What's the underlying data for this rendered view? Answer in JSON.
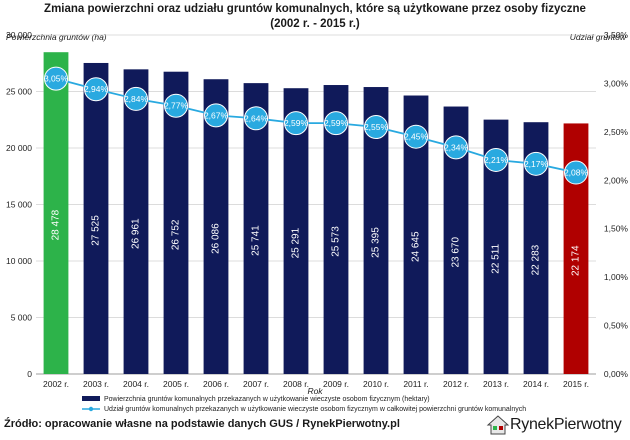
{
  "chart_data": {
    "type": "bar",
    "title": [
      "Zmiana powierzchni oraz udziału gruntów komunalnych, które są użytkowane przez osoby fizyczne",
      "(2002 r. - 2015 r.)"
    ],
    "ylabel_left": "Powierzchnia gruntów (ha)",
    "ylabel_right": "Udział gruntów",
    "xlabel": "Rok",
    "categories": [
      "2002 r.",
      "2003 r.",
      "2004 r.",
      "2005 r.",
      "2006 r.",
      "2007 r.",
      "2008 r.",
      "2009 r.",
      "2010 r.",
      "2011 r.",
      "2012 r.",
      "2013 r.",
      "2014 r.",
      "2015 r."
    ],
    "series": [
      {
        "name": "Powierzchnia gruntów komunalnych przekazanych w użytkowanie wieczyste osobom fizycznym (hektary)",
        "axis": "left",
        "values": [
          28478,
          27525,
          26961,
          26752,
          26086,
          25741,
          25291,
          25573,
          25395,
          24645,
          23670,
          22511,
          22283,
          22174
        ],
        "labels": [
          "28 478",
          "27 525",
          "26 961",
          "26 752",
          "26 086",
          "25 741",
          "25 291",
          "25 573",
          "25 395",
          "24 645",
          "23 670",
          "22 511",
          "22 283",
          "22 174"
        ],
        "colors": [
          "#2db34a",
          "#101a5a",
          "#101a5a",
          "#101a5a",
          "#101a5a",
          "#101a5a",
          "#101a5a",
          "#101a5a",
          "#101a5a",
          "#101a5a",
          "#101a5a",
          "#101a5a",
          "#101a5a",
          "#b00000"
        ]
      },
      {
        "name": "Udział gruntów komunalnych przekazanych w użytkowanie wieczyste osobom fizycznym w całkowitej powierzchni gruntów komunalnych",
        "axis": "right",
        "type": "line",
        "values": [
          3.05,
          2.94,
          2.84,
          2.77,
          2.67,
          2.64,
          2.59,
          2.59,
          2.55,
          2.45,
          2.34,
          2.21,
          2.17,
          2.08
        ],
        "labels": [
          "3,05%",
          "2,94%",
          "2,84%",
          "2,77%",
          "2,67%",
          "2,64%",
          "2,59%",
          "2,59%",
          "2,55%",
          "2,45%",
          "2,34%",
          "2,21%",
          "2,17%",
          "2,08%"
        ],
        "color": "#29a9e0"
      }
    ],
    "ylim_left": [
      0,
      30000
    ],
    "yticks_left": [
      "0",
      "5 000",
      "10 000",
      "15 000",
      "20 000",
      "25 000",
      "30 000"
    ],
    "ylim_right": [
      0,
      3.5
    ],
    "yticks_right": [
      "0,00%",
      "0,50%",
      "1,00%",
      "1,50%",
      "2,00%",
      "2,50%",
      "3,00%",
      "3,50%"
    ],
    "grid": true
  },
  "footer": {
    "source": "Źródło: opracowanie własne na podstawie danych GUS / RynekPierwotny.pl",
    "logo_text": "RynekPierwotny"
  },
  "colors": {
    "accent_dark_blue": "#101a5a",
    "accent_green": "#2db34a",
    "accent_red": "#b00000",
    "line_blue": "#29a9e0"
  }
}
